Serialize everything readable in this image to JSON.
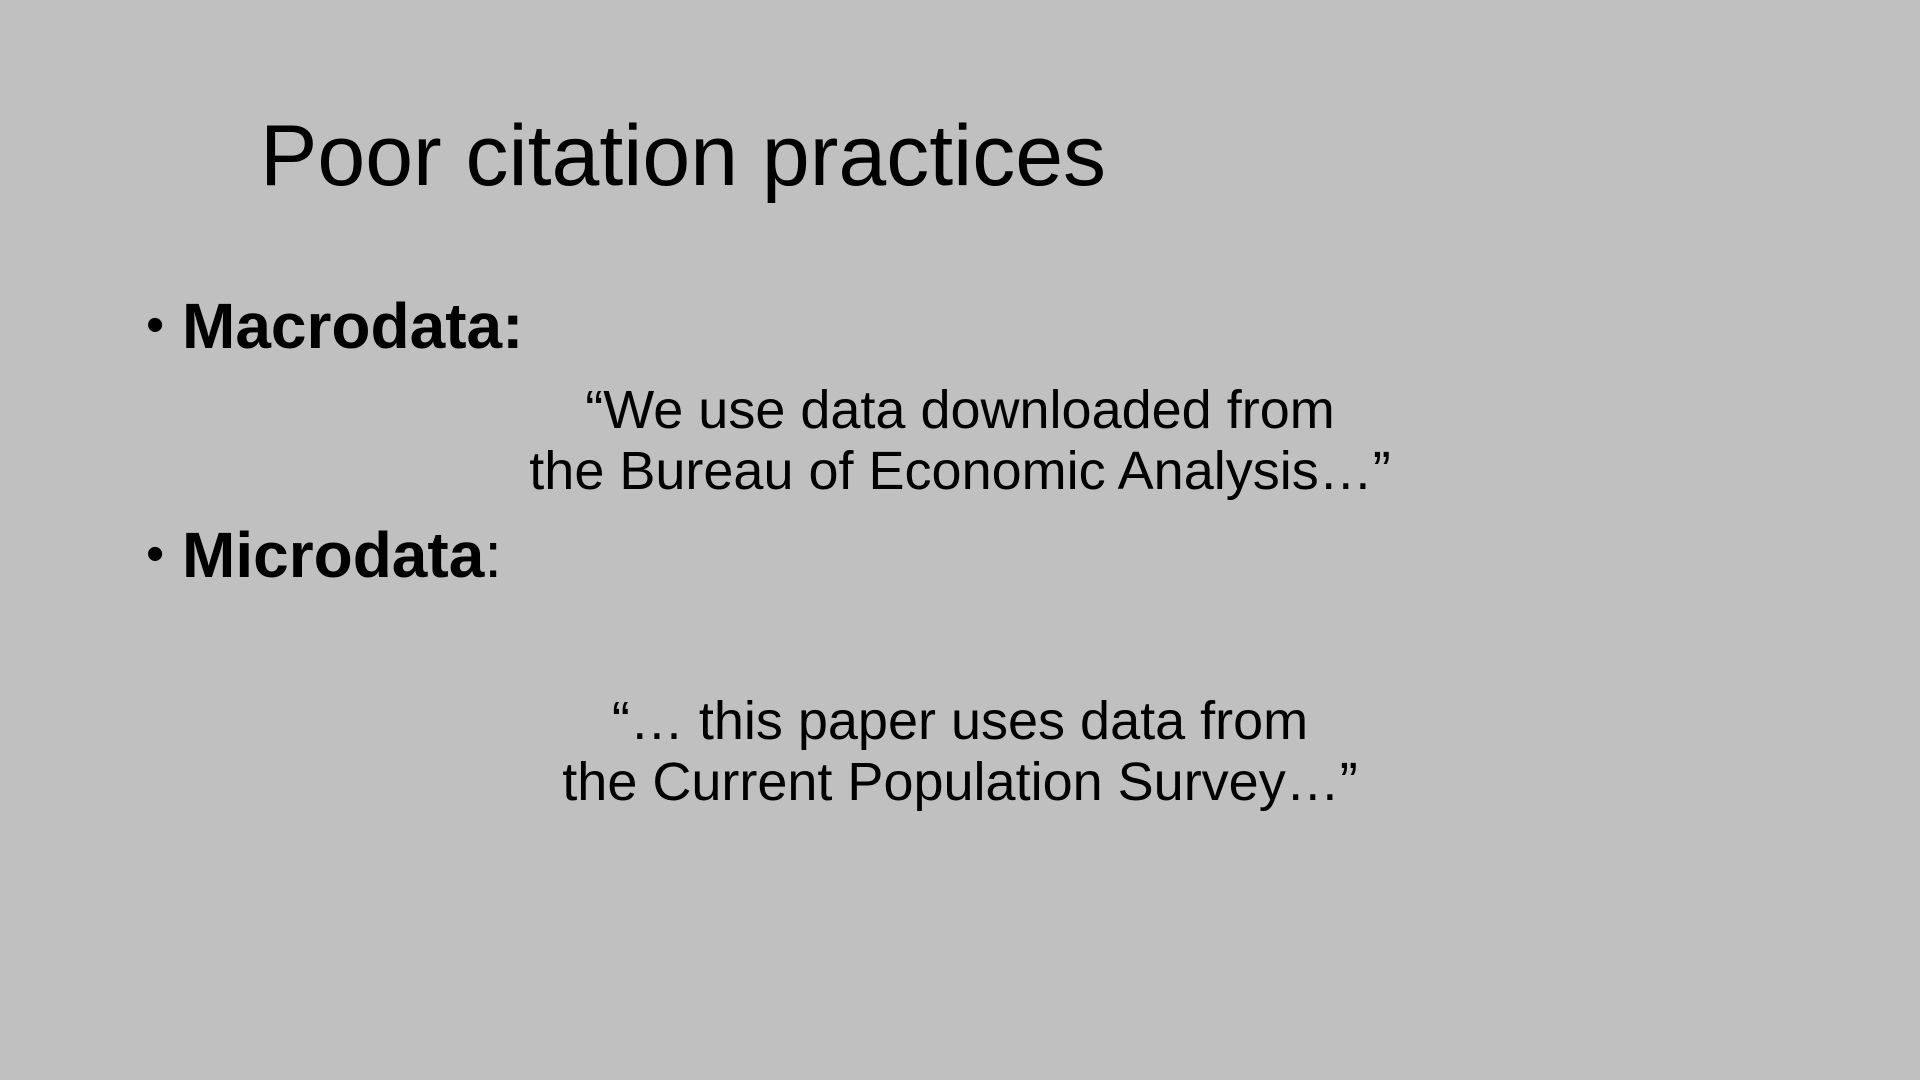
{
  "slide": {
    "title": "Poor citation practices",
    "bullets": [
      {
        "term": "Macrodata",
        "suffix": ":",
        "quote_lines": [
          "“We use data downloaded from",
          "the Bureau of Economic Analysis…”"
        ]
      },
      {
        "term": "Microdata",
        "suffix": ":",
        "quote_lines": [
          "“… this paper uses data from",
          "the Current Population Survey…”"
        ]
      }
    ],
    "bullet_glyph": "•",
    "colors": {
      "background": "#c0c0c0",
      "text": "#000000"
    }
  }
}
